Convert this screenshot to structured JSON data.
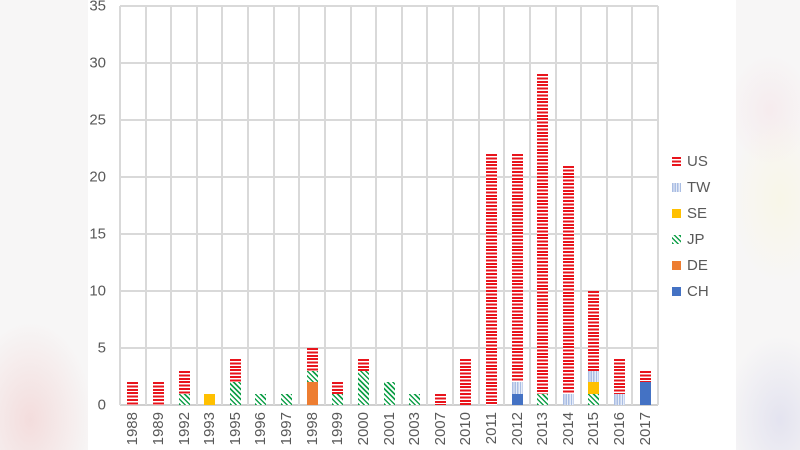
{
  "chart_data": {
    "type": "bar",
    "stacked": true,
    "title": "",
    "xlabel": "",
    "ylabel": "",
    "ylim": [
      0,
      35
    ],
    "yticks": [
      0,
      5,
      10,
      15,
      20,
      25,
      30,
      35
    ],
    "grid": true,
    "legend_position": "right",
    "categories": [
      "1988",
      "1989",
      "1992",
      "1993",
      "1995",
      "1996",
      "1997",
      "1998",
      "1999",
      "2000",
      "2001",
      "2003",
      "2007",
      "2010",
      "2011",
      "2012",
      "2013",
      "2014",
      "2015",
      "2016",
      "2017"
    ],
    "series": [
      {
        "name": "CH",
        "color": "#4472c4",
        "pattern": "solid",
        "values": [
          0,
          0,
          0,
          0,
          0,
          0,
          0,
          0,
          0,
          0,
          0,
          0,
          0,
          0,
          0,
          1,
          0,
          0,
          0,
          0,
          2
        ]
      },
      {
        "name": "DE",
        "color": "#ed7d31",
        "pattern": "solid",
        "values": [
          0,
          0,
          0,
          0,
          0,
          0,
          0,
          2,
          0,
          0,
          0,
          0,
          0,
          0,
          0,
          0,
          0,
          0,
          0,
          0,
          0
        ]
      },
      {
        "name": "JP",
        "color": "#12a04a",
        "pattern": "diagonal-stripes",
        "values": [
          0,
          0,
          1,
          0,
          2,
          1,
          1,
          1,
          1,
          3,
          2,
          1,
          0,
          0,
          0,
          0,
          1,
          0,
          1,
          0,
          0
        ]
      },
      {
        "name": "SE",
        "color": "#ffc000",
        "pattern": "solid",
        "values": [
          0,
          0,
          0,
          1,
          0,
          0,
          0,
          0,
          0,
          0,
          0,
          0,
          0,
          0,
          0,
          0,
          0,
          0,
          1,
          0,
          0
        ]
      },
      {
        "name": "TW",
        "color": "#a9bde3",
        "pattern": "vertical-stripes",
        "values": [
          0,
          0,
          0,
          0,
          0,
          0,
          0,
          0,
          0,
          0,
          0,
          0,
          0,
          0,
          0,
          1,
          0,
          1,
          1,
          1,
          0
        ]
      },
      {
        "name": "US",
        "color": "#e8141c",
        "pattern": "horizontal-stripes",
        "values": [
          2,
          2,
          2,
          0,
          2,
          0,
          0,
          2,
          1,
          1,
          0,
          0,
          1,
          4,
          22,
          20,
          28,
          20,
          7,
          3,
          1
        ]
      }
    ],
    "totals": [
      2,
      2,
      3,
      1,
      4,
      1,
      1,
      5,
      2,
      4,
      2,
      1,
      1,
      4,
      22,
      22,
      29,
      21,
      10,
      4,
      3
    ]
  },
  "legend": {
    "items": [
      {
        "label": "US",
        "key": "US"
      },
      {
        "label": "TW",
        "key": "TW"
      },
      {
        "label": "SE",
        "key": "SE"
      },
      {
        "label": "JP",
        "key": "JP"
      },
      {
        "label": "DE",
        "key": "DE"
      },
      {
        "label": "CH",
        "key": "CH"
      }
    ]
  }
}
